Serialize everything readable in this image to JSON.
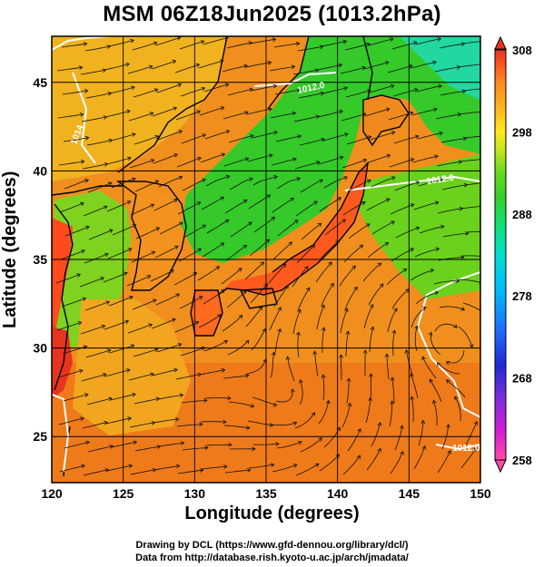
{
  "title": "MSM 06Z18Jun2025 (1013.2hPa)",
  "axes": {
    "xlabel": "Longitude (degrees)",
    "ylabel": "Latitude  (degrees)",
    "x_range": [
      120,
      150
    ],
    "y_range": [
      22.4,
      47.6
    ],
    "x_ticks": [
      "120",
      "125",
      "130",
      "135",
      "140",
      "145",
      "150"
    ],
    "y_ticks": [
      "25",
      "30",
      "35",
      "40",
      "45"
    ],
    "grid": true
  },
  "colorbar": {
    "range": [
      258,
      308
    ],
    "labels": [
      "308",
      "298",
      "288",
      "278",
      "268",
      "258"
    ],
    "colors": [
      "#ff4aa6",
      "#d41fd4",
      "#8a2be2",
      "#1e2bd6",
      "#1e6fff",
      "#00b8ff",
      "#00e0d0",
      "#14e06a",
      "#66d91a",
      "#c8e61e",
      "#ffe81e",
      "#ffb31e",
      "#ff8a1e",
      "#ff5a1e",
      "#e8341e"
    ]
  },
  "contour_labels": [
    "1012.0",
    "1012.0",
    "1012.0",
    "1014"
  ],
  "credits": {
    "line1": "Drawing by DCL (https://www.gfd-dennou.org/library/dcl/)",
    "line2": "Data from http://database.rish.kyoto-u.ac.jp/arch/jmadata/"
  }
}
